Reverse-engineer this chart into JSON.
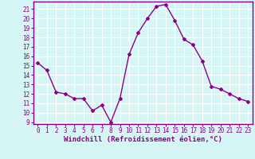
{
  "x": [
    0,
    1,
    2,
    3,
    4,
    5,
    6,
    7,
    8,
    9,
    10,
    11,
    12,
    13,
    14,
    15,
    16,
    17,
    18,
    19,
    20,
    21,
    22,
    23
  ],
  "y": [
    15.3,
    14.5,
    12.2,
    12.0,
    11.5,
    11.5,
    10.2,
    10.8,
    9.0,
    11.5,
    16.2,
    18.5,
    20.0,
    21.3,
    21.5,
    19.8,
    17.8,
    17.2,
    15.5,
    12.8,
    12.5,
    12.0,
    11.5,
    11.2
  ],
  "line_color": "#8B008B",
  "marker": "D",
  "marker_size": 2,
  "bg_color": "#d6f5f5",
  "grid_color": "#ffffff",
  "xlabel": "Windchill (Refroidissement éolien,°C)",
  "xlabel_color": "#8B008B",
  "xlim": [
    -0.5,
    23.5
  ],
  "ylim_min": 9,
  "ylim_max": 21.5,
  "yticks": [
    9,
    10,
    11,
    12,
    13,
    14,
    15,
    16,
    17,
    18,
    19,
    20,
    21
  ],
  "xticks": [
    0,
    1,
    2,
    3,
    4,
    5,
    6,
    7,
    8,
    9,
    10,
    11,
    12,
    13,
    14,
    15,
    16,
    17,
    18,
    19,
    20,
    21,
    22,
    23
  ],
  "tick_color": "#8B008B",
  "border_color": "#8B008B",
  "tick_fontsize": 5.5,
  "xlabel_fontsize": 6.5
}
